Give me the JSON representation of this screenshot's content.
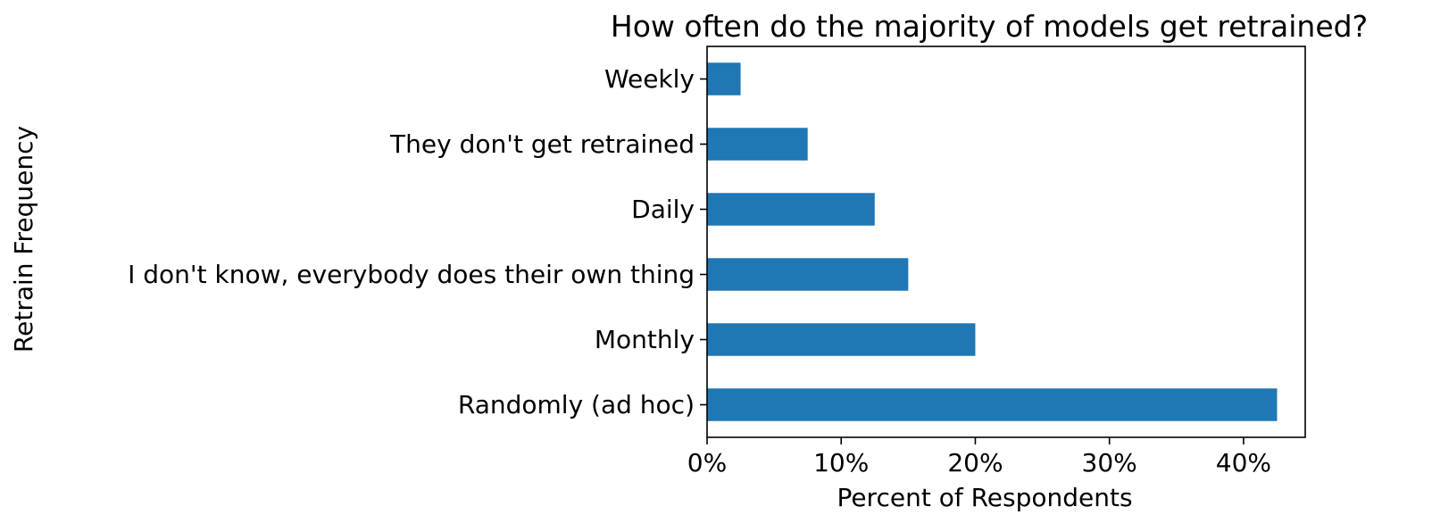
{
  "chart_data": {
    "type": "bar",
    "orientation": "horizontal",
    "title": "How often do the majority of models get retrained?",
    "xlabel": "Percent of Respondents",
    "ylabel": "Retrain Frequency",
    "categories": [
      "Weekly",
      "They don't get retrained",
      "Daily",
      "I don't know, everybody does their own thing",
      "Monthly",
      "Randomly (ad hoc)"
    ],
    "values": [
      2.5,
      7.5,
      12.5,
      15.0,
      20.0,
      42.5
    ],
    "xlim": [
      0,
      44.6
    ],
    "xticks": [
      0,
      10,
      20,
      30,
      40
    ],
    "xtick_labels": [
      "0%",
      "10%",
      "20%",
      "30%",
      "40%"
    ],
    "bar_color": "#1f77b4",
    "grid": false,
    "legend": "none"
  }
}
